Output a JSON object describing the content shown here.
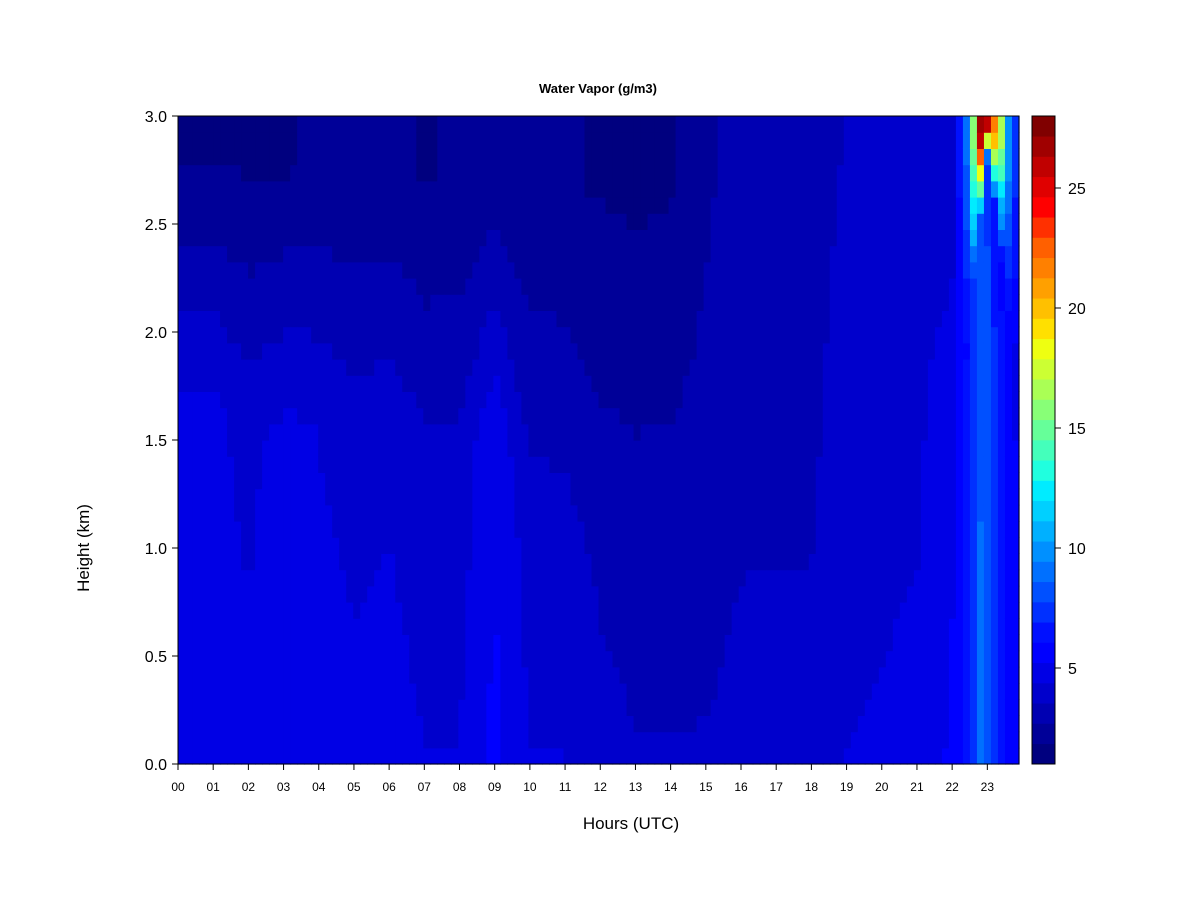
{
  "chart_data": {
    "type": "heatmap",
    "title": "Water Vapor (g/m3)",
    "xlabel": "Hours (UTC)",
    "ylabel": "Height (km)",
    "x_ticks": [
      "00",
      "01",
      "02",
      "03",
      "04",
      "05",
      "06",
      "07",
      "08",
      "09",
      "10",
      "11",
      "12",
      "13",
      "14",
      "15",
      "16",
      "17",
      "18",
      "19",
      "20",
      "21",
      "22",
      "23"
    ],
    "y_ticks": [
      "0.0",
      "0.5",
      "1.0",
      "1.5",
      "2.0",
      "2.5",
      "3.0"
    ],
    "xlim": [
      0,
      23.9
    ],
    "ylim": [
      0,
      3.0
    ],
    "colorbar": {
      "ticks": [
        "5",
        "10",
        "15",
        "20",
        "25"
      ],
      "tick_values": [
        5,
        10,
        15,
        20,
        25
      ],
      "range": [
        1,
        28
      ],
      "levels": [
        "#00007f",
        "#000098",
        "#0000b2",
        "#0000cc",
        "#0000e5",
        "#0000ff",
        "#0010ff",
        "#0030ff",
        "#0050ff",
        "#0070ff",
        "#0090ff",
        "#00b0ff",
        "#00d0ff",
        "#00ecff",
        "#20ffdf",
        "#44ffbb",
        "#66ff99",
        "#88ff77",
        "#aaff55",
        "#ccff33",
        "#eeff11",
        "#ffe000",
        "#ffc000",
        "#ffa000",
        "#ff8000",
        "#ff6000",
        "#ff3000",
        "#ff0000",
        "#e00000",
        "#c00000",
        "#a00000",
        "#800000"
      ]
    },
    "grid": false,
    "field_summary": {
      "hours": [
        0,
        1,
        2,
        3,
        4,
        5,
        6,
        7,
        8,
        9,
        10,
        11,
        12,
        13,
        14,
        15,
        16,
        17,
        18,
        19,
        20,
        21,
        22,
        22.5,
        22.8,
        23,
        23.3,
        23.6,
        23.9
      ],
      "surface_value": [
        5.2,
        5.0,
        4.6,
        5.2,
        4.8,
        4.6,
        4.7,
        4.4,
        4.4,
        5.5,
        4.4,
        4.4,
        3.8,
        3.6,
        3.6,
        3.6,
        3.8,
        3.8,
        3.8,
        4.4,
        4.5,
        4.6,
        5.4,
        7.0,
        9.0,
        8.5,
        7.0,
        6.0,
        5.5
      ],
      "moist_top_height_km": [
        1.6,
        1.7,
        1.5,
        1.5,
        1.6,
        1.4,
        1.5,
        1.3,
        1.3,
        1.6,
        1.1,
        1.0,
        0.9,
        0.9,
        0.9,
        1.0,
        1.2,
        1.3,
        1.3,
        1.6,
        1.7,
        1.8,
        1.8,
        2.0,
        2.5,
        2.8,
        2.5,
        2.0,
        1.8
      ],
      "top_value": [
        1.8,
        1.8,
        1.8,
        1.8,
        1.9,
        2.0,
        2.0,
        1.8,
        1.9,
        2.0,
        2.0,
        1.9,
        1.8,
        1.7,
        1.8,
        2.5,
        3.2,
        3.2,
        3.2,
        3.6,
        3.8,
        3.8,
        3.6,
        10,
        27,
        26,
        20,
        10,
        6
      ]
    }
  }
}
